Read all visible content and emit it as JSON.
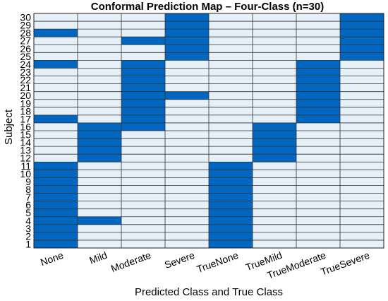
{
  "chart_data": {
    "type": "heatmap",
    "title": "Conformal Prediction Map – Four-Class (n=30)",
    "xlabel": "Predicted Class and True Class",
    "ylabel": "Subject",
    "categories": [
      "None",
      "Mild",
      "Moderate",
      "Severe",
      "TrueNone",
      "TrueMild",
      "TrueModerate",
      "TrueSevere"
    ],
    "subjects": [
      1,
      2,
      3,
      4,
      5,
      6,
      7,
      8,
      9,
      10,
      11,
      12,
      13,
      14,
      15,
      16,
      17,
      18,
      19,
      20,
      21,
      22,
      23,
      24,
      25,
      26,
      27,
      28,
      29,
      30
    ],
    "legend": "none",
    "grid": true,
    "colors": {
      "on": "#0066c0",
      "off": "#e6f0f8",
      "grid": "#333333"
    },
    "values": [
      [
        1,
        0,
        0,
        0,
        1,
        0,
        0,
        0
      ],
      [
        1,
        0,
        0,
        0,
        1,
        0,
        0,
        0
      ],
      [
        1,
        0,
        0,
        0,
        1,
        0,
        0,
        0
      ],
      [
        1,
        1,
        0,
        0,
        1,
        0,
        0,
        0
      ],
      [
        1,
        0,
        0,
        0,
        1,
        0,
        0,
        0
      ],
      [
        1,
        0,
        0,
        0,
        1,
        0,
        0,
        0
      ],
      [
        1,
        0,
        0,
        0,
        1,
        0,
        0,
        0
      ],
      [
        1,
        0,
        0,
        0,
        1,
        0,
        0,
        0
      ],
      [
        1,
        0,
        0,
        0,
        1,
        0,
        0,
        0
      ],
      [
        1,
        0,
        0,
        0,
        1,
        0,
        0,
        0
      ],
      [
        1,
        0,
        0,
        0,
        1,
        0,
        0,
        0
      ],
      [
        0,
        1,
        0,
        0,
        0,
        1,
        0,
        0
      ],
      [
        0,
        1,
        0,
        0,
        0,
        1,
        0,
        0
      ],
      [
        0,
        1,
        0,
        0,
        0,
        1,
        0,
        0
      ],
      [
        0,
        1,
        0,
        0,
        0,
        1,
        0,
        0
      ],
      [
        0,
        1,
        1,
        0,
        0,
        1,
        0,
        0
      ],
      [
        1,
        0,
        1,
        0,
        0,
        0,
        1,
        0
      ],
      [
        0,
        0,
        1,
        0,
        0,
        0,
        1,
        0
      ],
      [
        0,
        0,
        1,
        0,
        0,
        0,
        1,
        0
      ],
      [
        0,
        0,
        1,
        1,
        0,
        0,
        1,
        0
      ],
      [
        0,
        0,
        1,
        0,
        0,
        0,
        1,
        0
      ],
      [
        0,
        0,
        1,
        0,
        0,
        0,
        1,
        0
      ],
      [
        0,
        0,
        1,
        0,
        0,
        0,
        1,
        0
      ],
      [
        1,
        0,
        1,
        0,
        0,
        0,
        1,
        0
      ],
      [
        0,
        0,
        0,
        1,
        0,
        0,
        0,
        1
      ],
      [
        0,
        0,
        0,
        1,
        0,
        0,
        0,
        1
      ],
      [
        0,
        0,
        1,
        1,
        0,
        0,
        0,
        1
      ],
      [
        1,
        0,
        0,
        1,
        0,
        0,
        0,
        1
      ],
      [
        0,
        0,
        0,
        1,
        0,
        0,
        0,
        1
      ],
      [
        0,
        0,
        0,
        1,
        0,
        0,
        0,
        1
      ]
    ]
  }
}
